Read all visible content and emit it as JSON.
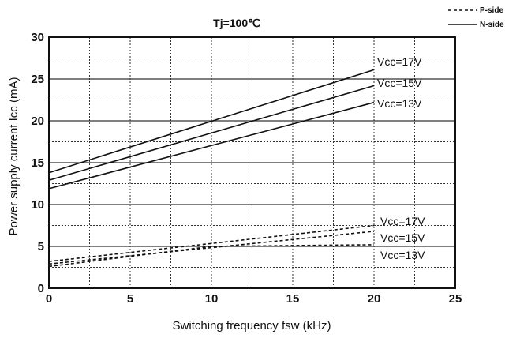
{
  "chart_data": {
    "type": "line",
    "title": "Tj=100℃",
    "xlabel": "Switching frequency   fsw (kHz)",
    "ylabel": "Power supply current   Icc (mA)",
    "xlim": [
      0,
      25
    ],
    "ylim": [
      0,
      30
    ],
    "xticks": [
      "0",
      "5",
      "10",
      "15",
      "20",
      "25"
    ],
    "yticks": [
      "0",
      "5",
      "10",
      "15",
      "20",
      "25",
      "30"
    ],
    "grid": true,
    "legend": [
      {
        "label": "P-side",
        "style": "dashed"
      },
      {
        "label": "N-side",
        "style": "solid"
      }
    ],
    "legend_position": "top-right",
    "series": [
      {
        "name": "Vcc=17V",
        "group": "N-side",
        "style": "solid",
        "x": [
          0,
          20
        ],
        "y": [
          13.8,
          26.1
        ]
      },
      {
        "name": "Vcc=15V",
        "group": "N-side",
        "style": "solid",
        "x": [
          0,
          20
        ],
        "y": [
          12.9,
          24.2
        ]
      },
      {
        "name": "Vcc=13V",
        "group": "N-side",
        "style": "solid",
        "x": [
          0,
          20
        ],
        "y": [
          11.9,
          22.2
        ]
      },
      {
        "name": "Vcc=17V",
        "group": "P-side",
        "style": "dashed",
        "x": [
          0,
          20
        ],
        "y": [
          3.2,
          7.5
        ]
      },
      {
        "name": "Vcc=15V",
        "group": "P-side",
        "style": "dashed",
        "x": [
          0,
          20
        ],
        "y": [
          2.9,
          6.8
        ]
      },
      {
        "name": "Vcc=13V",
        "group": "P-side",
        "style": "dashed",
        "x": [
          0,
          10,
          20
        ],
        "y": [
          2.6,
          5.0,
          5.2
        ]
      }
    ],
    "colors": {
      "line": "#111111",
      "grid": "#333333",
      "background": "#ffffff"
    }
  }
}
